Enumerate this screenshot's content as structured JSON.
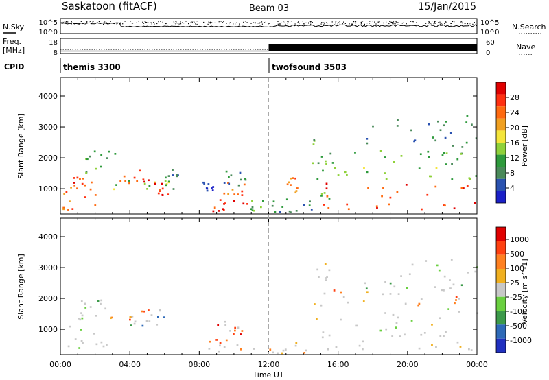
{
  "header": {
    "title": "Saskatoon (fitACF)",
    "beam": "Beam 03",
    "date": "15/Jan/2015"
  },
  "panels": {
    "nsky": {
      "left_label": "N.Sky",
      "right_label": "N.Search",
      "left_ticks": [
        "10^5",
        "10^0"
      ],
      "right_ticks": [
        "10^5",
        "10^0"
      ]
    },
    "freq": {
      "left_label_top": "Freq.",
      "left_label_bottom": "[MHz]",
      "left_ticks": [
        "18",
        "8"
      ],
      "right_label": "Nave",
      "right_ticks": [
        "60",
        "0"
      ]
    },
    "cpid": {
      "label": "CPID",
      "modes": [
        {
          "name": "themis 3300",
          "start_hour": 0
        },
        {
          "name": "twofsound 3503",
          "start_hour": 12.0
        }
      ]
    }
  },
  "colors": {
    "power": [
      "#1a20c8",
      "#2a52b0",
      "#4a8a5a",
      "#2e9a3c",
      "#8fd13a",
      "#f4e53a",
      "#f0a020",
      "#ff6a10",
      "#ff3010",
      "#e00000"
    ],
    "velocity": [
      "#2030c0",
      "#2e6ab8",
      "#3c9a4a",
      "#6ad040",
      "#c8c8c8",
      "#f0b020",
      "#ff8020",
      "#ff4010",
      "#e00000"
    ],
    "ground_scatter": "#c8c8c8"
  },
  "chart_data": [
    {
      "type": "heatmap",
      "name": "power-panel",
      "ylabel": "Slant Range [km]",
      "x_range_hours": [
        0,
        24
      ],
      "ylim": [
        180,
        4600
      ],
      "yticks": [
        "1000",
        "2000",
        "3000",
        "4000"
      ],
      "ytick_values": [
        1000,
        2000,
        3000,
        4000
      ],
      "colorbar": {
        "label": "Power [dB]",
        "min": 0,
        "max": 32,
        "ticks": [
          "4",
          "8",
          "12",
          "16",
          "20",
          "24",
          "28"
        ],
        "tick_values": [
          4,
          8,
          12,
          16,
          20,
          24,
          28
        ]
      },
      "regions": [
        {
          "t0": 0.1,
          "t1": 2.3,
          "r0": 300,
          "r1": 1350,
          "level": 7
        },
        {
          "t0": 0.2,
          "t1": 1.5,
          "r0": 900,
          "r1": 1400,
          "level": 8
        },
        {
          "t0": 1.0,
          "t1": 3.2,
          "r0": 1400,
          "r1": 2300,
          "level": 3
        },
        {
          "t0": 3.0,
          "t1": 5.3,
          "r0": 1200,
          "r1": 1650,
          "level": 8
        },
        {
          "t0": 3.0,
          "t1": 6.2,
          "r0": 1000,
          "r1": 1300,
          "level": 4
        },
        {
          "t0": 5.2,
          "t1": 6.2,
          "r0": 800,
          "r1": 1200,
          "level": 8
        },
        {
          "t0": 6.0,
          "t1": 7.0,
          "r0": 1000,
          "r1": 1700,
          "level": 2
        },
        {
          "t0": 7.9,
          "t1": 8.8,
          "r0": 800,
          "r1": 1300,
          "level": 1
        },
        {
          "t0": 8.1,
          "t1": 11.0,
          "r0": 300,
          "r1": 700,
          "level": 8
        },
        {
          "t0": 9.3,
          "t1": 10.6,
          "r0": 800,
          "r1": 1300,
          "level": 7
        },
        {
          "t0": 9.0,
          "t1": 10.8,
          "r0": 1100,
          "r1": 1600,
          "level": 2
        },
        {
          "t0": 10.0,
          "t1": 12.5,
          "r0": 250,
          "r1": 650,
          "level": 3
        },
        {
          "t0": 12.5,
          "t1": 14.5,
          "r0": 250,
          "r1": 700,
          "level": 2
        },
        {
          "t0": 13.0,
          "t1": 13.8,
          "r0": 900,
          "r1": 1400,
          "level": 7
        },
        {
          "t0": 14.5,
          "t1": 15.5,
          "r0": 250,
          "r1": 2800,
          "level": 3
        },
        {
          "t0": 15.0,
          "t1": 24.0,
          "r0": 350,
          "r1": 1250,
          "level": 8
        },
        {
          "t0": 15.0,
          "t1": 24.0,
          "r0": 1300,
          "r1": 1700,
          "level": 4
        },
        {
          "t0": 15.5,
          "t1": 24.0,
          "r0": 1800,
          "r1": 2300,
          "level": 3
        },
        {
          "t0": 17.5,
          "t1": 24.0,
          "r0": 2300,
          "r1": 3400,
          "level": 2
        }
      ]
    },
    {
      "type": "heatmap",
      "name": "velocity-panel",
      "xlabel": "Time UT",
      "ylabel": "Slant Range [km]",
      "x_range_hours": [
        0,
        24
      ],
      "xticks": [
        "00:00",
        "04:00",
        "08:00",
        "12:00",
        "16:00",
        "20:00",
        "00:00"
      ],
      "xtick_hours": [
        0,
        4,
        8,
        12,
        16,
        20,
        24
      ],
      "ylim": [
        180,
        4600
      ],
      "yticks": [
        "1000",
        "2000",
        "3000",
        "4000"
      ],
      "ytick_values": [
        1000,
        2000,
        3000,
        4000
      ],
      "colorbar": {
        "label": "Velocity [m s^-1]",
        "ticks": [
          "1000",
          "500",
          "100",
          "25",
          "-25",
          "-100",
          "-500",
          "-1000"
        ]
      },
      "regions": [
        {
          "t0": 0.1,
          "t1": 3.0,
          "r0": 300,
          "r1": 1400,
          "level": 4
        },
        {
          "t0": 1.0,
          "t1": 2.5,
          "r0": 1400,
          "r1": 2000,
          "level": 3
        },
        {
          "t0": 2.5,
          "t1": 5.8,
          "r0": 1250,
          "r1": 1800,
          "level": 6
        },
        {
          "t0": 4.0,
          "t1": 6.0,
          "r0": 1100,
          "r1": 1500,
          "level": 2
        },
        {
          "t0": 8.3,
          "t1": 10.5,
          "r0": 300,
          "r1": 700,
          "level": 6
        },
        {
          "t0": 9.0,
          "t1": 10.5,
          "r0": 800,
          "r1": 1300,
          "level": 7
        },
        {
          "t0": 11.0,
          "t1": 14.5,
          "r0": 250,
          "r1": 650,
          "level": 5
        },
        {
          "t0": 14.5,
          "t1": 15.5,
          "r0": 250,
          "r1": 3200,
          "level": 4
        },
        {
          "t0": 15.0,
          "t1": 24.0,
          "r0": 350,
          "r1": 1700,
          "level": 4
        },
        {
          "t0": 15.5,
          "t1": 24.0,
          "r0": 1800,
          "r1": 2300,
          "level": 6
        },
        {
          "t0": 17.5,
          "t1": 24.0,
          "r0": 2300,
          "r1": 3300,
          "level": 2
        }
      ]
    }
  ]
}
